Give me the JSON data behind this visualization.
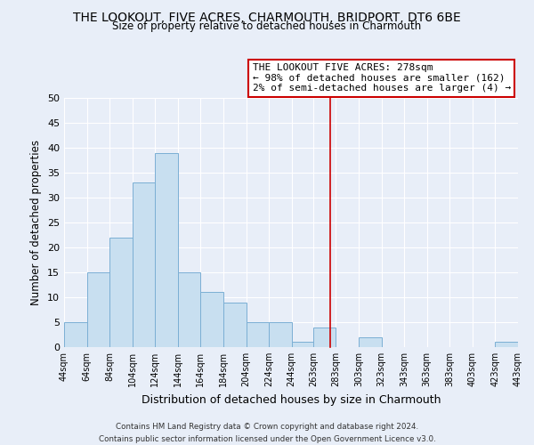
{
  "title": "THE LOOKOUT, FIVE ACRES, CHARMOUTH, BRIDPORT, DT6 6BE",
  "subtitle": "Size of property relative to detached houses in Charmouth",
  "xlabel": "Distribution of detached houses by size in Charmouth",
  "ylabel": "Number of detached properties",
  "bar_color": "#c8dff0",
  "bar_edge_color": "#7bafd4",
  "background_color": "#e8eef8",
  "grid_color": "#ffffff",
  "bin_edges": [
    44,
    64,
    84,
    104,
    124,
    144,
    164,
    184,
    204,
    224,
    244,
    263,
    283,
    303,
    323,
    343,
    363,
    383,
    403,
    423,
    443
  ],
  "bin_counts": [
    5,
    15,
    22,
    33,
    39,
    15,
    11,
    9,
    5,
    5,
    1,
    4,
    0,
    2,
    0,
    0,
    0,
    0,
    0,
    1
  ],
  "property_line_x": 278,
  "property_line_color": "#cc0000",
  "annotation_title": "THE LOOKOUT FIVE ACRES: 278sqm",
  "annotation_line1": "← 98% of detached houses are smaller (162)",
  "annotation_line2": "2% of semi-detached houses are larger (4) →",
  "ylim": [
    0,
    50
  ],
  "yticks": [
    0,
    5,
    10,
    15,
    20,
    25,
    30,
    35,
    40,
    45,
    50
  ],
  "footer_line1": "Contains HM Land Registry data © Crown copyright and database right 2024.",
  "footer_line2": "Contains public sector information licensed under the Open Government Licence v3.0.",
  "tick_labels": [
    "44sqm",
    "64sqm",
    "84sqm",
    "104sqm",
    "124sqm",
    "144sqm",
    "164sqm",
    "184sqm",
    "204sqm",
    "224sqm",
    "244sqm",
    "263sqm",
    "283sqm",
    "303sqm",
    "323sqm",
    "343sqm",
    "363sqm",
    "383sqm",
    "403sqm",
    "423sqm",
    "443sqm"
  ]
}
